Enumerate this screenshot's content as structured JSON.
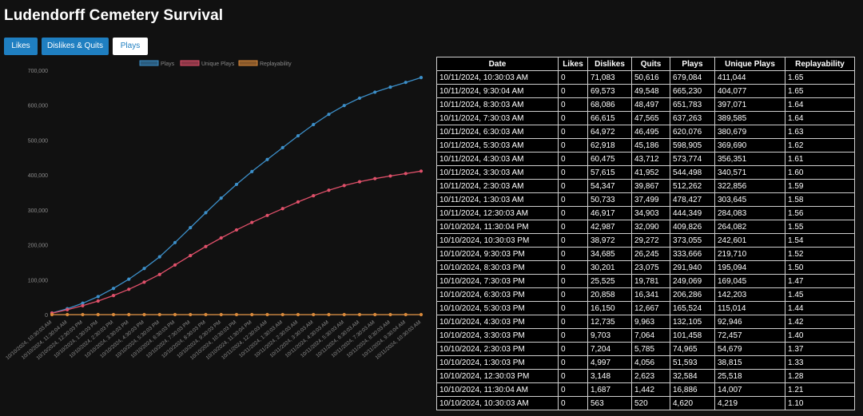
{
  "page": {
    "title": "Ludendorff Cemetery Survival"
  },
  "tabs": [
    {
      "label": "Likes",
      "active": false
    },
    {
      "label": "Dislikes & Quits",
      "active": false
    },
    {
      "label": "Plays",
      "active": true
    }
  ],
  "colors": {
    "accent": "#1f7fc1",
    "plays": "#3c8fc9",
    "unique": "#e0506a",
    "replay": "#d9893a"
  },
  "chart_data": {
    "type": "line",
    "title": "",
    "xlabel": "",
    "ylabel": "",
    "ylim": [
      0,
      700000
    ],
    "yticks": [
      "0",
      "100,000",
      "200,000",
      "300,000",
      "400,000",
      "500,000",
      "600,000",
      "700,000"
    ],
    "x": [
      "10/10/2024, 10:30:03 AM",
      "10/10/2024, 11:30:04 AM",
      "10/10/2024, 12:30:03 PM",
      "10/10/2024, 1:30:03 PM",
      "10/10/2024, 2:30:03 PM",
      "10/10/2024, 3:30:03 PM",
      "10/10/2024, 4:30:03 PM",
      "10/10/2024, 5:30:03 PM",
      "10/10/2024, 6:30:03 PM",
      "10/10/2024, 7:30:03 PM",
      "10/10/2024, 8:30:03 PM",
      "10/10/2024, 9:30:03 PM",
      "10/10/2024, 10:30:03 PM",
      "10/10/2024, 11:30:04 PM",
      "10/11/2024, 12:30:03 AM",
      "10/11/2024, 1:30:03 AM",
      "10/11/2024, 2:30:03 AM",
      "10/11/2024, 3:30:03 AM",
      "10/11/2024, 4:30:03 AM",
      "10/11/2024, 5:30:03 AM",
      "10/11/2024, 6:30:03 AM",
      "10/11/2024, 7:30:03 AM",
      "10/11/2024, 8:30:03 AM",
      "10/11/2024, 9:30:04 AM",
      "10/11/2024, 10:30:03 AM"
    ],
    "legend_position": "top",
    "grid": false,
    "series": [
      {
        "name": "Plays",
        "color": "#3c8fc9",
        "values": [
          4620,
          16886,
          32584,
          51593,
          74965,
          101458,
          132105,
          165524,
          206286,
          249069,
          291940,
          333666,
          373055,
          409826,
          444349,
          478427,
          512262,
          544498,
          573774,
          598905,
          620076,
          637263,
          651783,
          665230,
          679084
        ]
      },
      {
        "name": "Unique Plays",
        "color": "#e0506a",
        "values": [
          4219,
          14007,
          25518,
          38815,
          54679,
          72457,
          92946,
          115014,
          142203,
          169045,
          195094,
          219710,
          242601,
          264082,
          284083,
          303645,
          322856,
          340571,
          356351,
          369690,
          380679,
          389585,
          397071,
          404077,
          411044
        ]
      },
      {
        "name": "Replayability",
        "color": "#d9893a",
        "values": [
          1.1,
          1.21,
          1.28,
          1.33,
          1.37,
          1.4,
          1.42,
          1.44,
          1.45,
          1.47,
          1.5,
          1.52,
          1.54,
          1.55,
          1.56,
          1.58,
          1.59,
          1.6,
          1.61,
          1.62,
          1.63,
          1.63,
          1.64,
          1.65,
          1.65
        ]
      }
    ]
  },
  "table": {
    "headers": [
      "Date",
      "Likes",
      "Dislikes",
      "Quits",
      "Plays",
      "Unique Plays",
      "Replayability"
    ],
    "rows": [
      [
        "10/11/2024, 10:30:03 AM",
        "0",
        "71,083",
        "50,616",
        "679,084",
        "411,044",
        "1.65"
      ],
      [
        "10/11/2024, 9:30:04 AM",
        "0",
        "69,573",
        "49,548",
        "665,230",
        "404,077",
        "1.65"
      ],
      [
        "10/11/2024, 8:30:03 AM",
        "0",
        "68,086",
        "48,497",
        "651,783",
        "397,071",
        "1.64"
      ],
      [
        "10/11/2024, 7:30:03 AM",
        "0",
        "66,615",
        "47,565",
        "637,263",
        "389,585",
        "1.64"
      ],
      [
        "10/11/2024, 6:30:03 AM",
        "0",
        "64,972",
        "46,495",
        "620,076",
        "380,679",
        "1.63"
      ],
      [
        "10/11/2024, 5:30:03 AM",
        "0",
        "62,918",
        "45,186",
        "598,905",
        "369,690",
        "1.62"
      ],
      [
        "10/11/2024, 4:30:03 AM",
        "0",
        "60,475",
        "43,712",
        "573,774",
        "356,351",
        "1.61"
      ],
      [
        "10/11/2024, 3:30:03 AM",
        "0",
        "57,615",
        "41,952",
        "544,498",
        "340,571",
        "1.60"
      ],
      [
        "10/11/2024, 2:30:03 AM",
        "0",
        "54,347",
        "39,867",
        "512,262",
        "322,856",
        "1.59"
      ],
      [
        "10/11/2024, 1:30:03 AM",
        "0",
        "50,733",
        "37,499",
        "478,427",
        "303,645",
        "1.58"
      ],
      [
        "10/11/2024, 12:30:03 AM",
        "0",
        "46,917",
        "34,903",
        "444,349",
        "284,083",
        "1.56"
      ],
      [
        "10/10/2024, 11:30:04 PM",
        "0",
        "42,987",
        "32,090",
        "409,826",
        "264,082",
        "1.55"
      ],
      [
        "10/10/2024, 10:30:03 PM",
        "0",
        "38,972",
        "29,272",
        "373,055",
        "242,601",
        "1.54"
      ],
      [
        "10/10/2024, 9:30:03 PM",
        "0",
        "34,685",
        "26,245",
        "333,666",
        "219,710",
        "1.52"
      ],
      [
        "10/10/2024, 8:30:03 PM",
        "0",
        "30,201",
        "23,075",
        "291,940",
        "195,094",
        "1.50"
      ],
      [
        "10/10/2024, 7:30:03 PM",
        "0",
        "25,525",
        "19,781",
        "249,069",
        "169,045",
        "1.47"
      ],
      [
        "10/10/2024, 6:30:03 PM",
        "0",
        "20,858",
        "16,341",
        "206,286",
        "142,203",
        "1.45"
      ],
      [
        "10/10/2024, 5:30:03 PM",
        "0",
        "16,150",
        "12,667",
        "165,524",
        "115,014",
        "1.44"
      ],
      [
        "10/10/2024, 4:30:03 PM",
        "0",
        "12,735",
        "9,963",
        "132,105",
        "92,946",
        "1.42"
      ],
      [
        "10/10/2024, 3:30:03 PM",
        "0",
        "9,703",
        "7,064",
        "101,458",
        "72,457",
        "1.40"
      ],
      [
        "10/10/2024, 2:30:03 PM",
        "0",
        "7,204",
        "5,785",
        "74,965",
        "54,679",
        "1.37"
      ],
      [
        "10/10/2024, 1:30:03 PM",
        "0",
        "4,997",
        "4,056",
        "51,593",
        "38,815",
        "1.33"
      ],
      [
        "10/10/2024, 12:30:03 PM",
        "0",
        "3,148",
        "2,623",
        "32,584",
        "25,518",
        "1.28"
      ],
      [
        "10/10/2024, 11:30:04 AM",
        "0",
        "1,687",
        "1,442",
        "16,886",
        "14,007",
        "1.21"
      ],
      [
        "10/10/2024, 10:30:03 AM",
        "0",
        "563",
        "520",
        "4,620",
        "4,219",
        "1.10"
      ]
    ]
  }
}
